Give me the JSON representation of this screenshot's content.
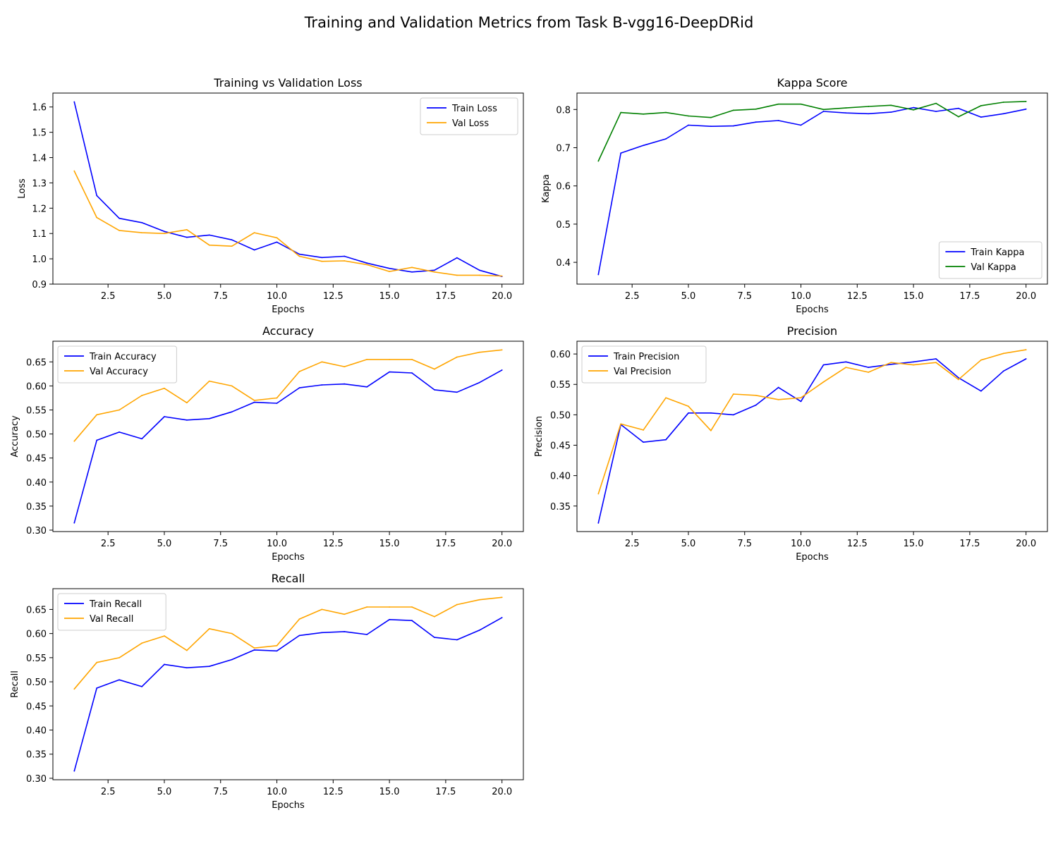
{
  "figure": {
    "suptitle": "Training and Validation Metrics from Task B-vgg16-DeepDRid"
  },
  "chart_data": [
    {
      "type": "line",
      "title": "Training vs Validation Loss",
      "xlabel": "Epochs",
      "ylabel": "Loss",
      "x": [
        1,
        2,
        3,
        4,
        5,
        6,
        7,
        8,
        9,
        10,
        11,
        12,
        13,
        14,
        15,
        16,
        17,
        18,
        19,
        20
      ],
      "xlim": [
        0.05,
        20.95
      ],
      "ylim": [
        0.9,
        1.655
      ],
      "xticks": [
        2.5,
        5.0,
        7.5,
        10.0,
        12.5,
        15.0,
        17.5,
        20.0
      ],
      "yticks": [
        0.9,
        1.0,
        1.1,
        1.2,
        1.3,
        1.4,
        1.5,
        1.6
      ],
      "ytick_decimals": 1,
      "legend": "upper right",
      "series": [
        {
          "name": "Train Loss",
          "color": "#0000ff",
          "values": [
            1.62,
            1.25,
            1.16,
            1.143,
            1.108,
            1.085,
            1.094,
            1.075,
            1.035,
            1.066,
            1.018,
            1.005,
            1.01,
            0.983,
            0.962,
            0.948,
            0.955,
            1.004,
            0.955,
            0.93
          ]
        },
        {
          "name": "Val Loss",
          "color": "#ffa500",
          "values": [
            1.347,
            1.163,
            1.112,
            1.103,
            1.1,
            1.115,
            1.054,
            1.05,
            1.103,
            1.083,
            1.01,
            0.99,
            0.992,
            0.977,
            0.95,
            0.966,
            0.948,
            0.935,
            0.935,
            0.932
          ]
        }
      ]
    },
    {
      "type": "line",
      "title": "Kappa Score",
      "xlabel": "Epochs",
      "ylabel": "Kappa",
      "x": [
        1,
        2,
        3,
        4,
        5,
        6,
        7,
        8,
        9,
        10,
        11,
        12,
        13,
        14,
        15,
        16,
        17,
        18,
        19,
        20
      ],
      "xlim": [
        0.05,
        20.95
      ],
      "ylim": [
        0.343,
        0.843
      ],
      "xticks": [
        2.5,
        5.0,
        7.5,
        10.0,
        12.5,
        15.0,
        17.5,
        20.0
      ],
      "yticks": [
        0.4,
        0.5,
        0.6,
        0.7,
        0.8
      ],
      "ytick_decimals": 1,
      "legend": "lower right",
      "series": [
        {
          "name": "Train Kappa",
          "color": "#0000ff",
          "values": [
            0.368,
            0.686,
            0.706,
            0.723,
            0.759,
            0.756,
            0.757,
            0.767,
            0.771,
            0.759,
            0.795,
            0.791,
            0.789,
            0.793,
            0.805,
            0.795,
            0.803,
            0.78,
            0.789,
            0.801
          ]
        },
        {
          "name": "Val Kappa",
          "color": "#008000",
          "values": [
            0.665,
            0.792,
            0.788,
            0.792,
            0.783,
            0.779,
            0.798,
            0.801,
            0.814,
            0.814,
            0.8,
            0.804,
            0.808,
            0.811,
            0.799,
            0.816,
            0.781,
            0.81,
            0.819,
            0.821
          ]
        }
      ]
    },
    {
      "type": "line",
      "title": "Accuracy",
      "xlabel": "Epochs",
      "ylabel": "Accuracy",
      "x": [
        1,
        2,
        3,
        4,
        5,
        6,
        7,
        8,
        9,
        10,
        11,
        12,
        13,
        14,
        15,
        16,
        17,
        18,
        19,
        20
      ],
      "xlim": [
        0.05,
        20.95
      ],
      "ylim": [
        0.297,
        0.693
      ],
      "xticks": [
        2.5,
        5.0,
        7.5,
        10.0,
        12.5,
        15.0,
        17.5,
        20.0
      ],
      "yticks": [
        0.3,
        0.35,
        0.4,
        0.45,
        0.5,
        0.55,
        0.6,
        0.65
      ],
      "ytick_decimals": 2,
      "legend": "upper left",
      "series": [
        {
          "name": "Train Accuracy",
          "color": "#0000ff",
          "values": [
            0.315,
            0.487,
            0.504,
            0.49,
            0.536,
            0.529,
            0.532,
            0.546,
            0.566,
            0.564,
            0.596,
            0.602,
            0.604,
            0.598,
            0.629,
            0.627,
            0.592,
            0.587,
            0.607,
            0.633
          ]
        },
        {
          "name": "Val Accuracy",
          "color": "#ffa500",
          "values": [
            0.485,
            0.54,
            0.55,
            0.58,
            0.595,
            0.565,
            0.61,
            0.6,
            0.57,
            0.575,
            0.63,
            0.65,
            0.64,
            0.655,
            0.655,
            0.655,
            0.635,
            0.66,
            0.67,
            0.675
          ]
        }
      ]
    },
    {
      "type": "line",
      "title": "Precision",
      "xlabel": "Epochs",
      "ylabel": "Precision",
      "x": [
        1,
        2,
        3,
        4,
        5,
        6,
        7,
        8,
        9,
        10,
        11,
        12,
        13,
        14,
        15,
        16,
        17,
        18,
        19,
        20
      ],
      "xlim": [
        0.05,
        20.95
      ],
      "ylim": [
        0.308,
        0.621
      ],
      "xticks": [
        2.5,
        5.0,
        7.5,
        10.0,
        12.5,
        15.0,
        17.5,
        20.0
      ],
      "yticks": [
        0.35,
        0.4,
        0.45,
        0.5,
        0.55,
        0.6
      ],
      "ytick_decimals": 2,
      "legend": "upper left",
      "series": [
        {
          "name": "Train Precision",
          "color": "#0000ff",
          "values": [
            0.322,
            0.484,
            0.455,
            0.459,
            0.503,
            0.503,
            0.5,
            0.516,
            0.545,
            0.522,
            0.582,
            0.587,
            0.578,
            0.583,
            0.587,
            0.592,
            0.561,
            0.539,
            0.572,
            0.592
          ]
        },
        {
          "name": "Val Precision",
          "color": "#ffa500",
          "values": [
            0.37,
            0.485,
            0.475,
            0.528,
            0.514,
            0.474,
            0.534,
            0.532,
            0.525,
            0.528,
            0.554,
            0.578,
            0.57,
            0.586,
            0.582,
            0.586,
            0.558,
            0.59,
            0.601,
            0.607
          ]
        }
      ]
    },
    {
      "type": "line",
      "title": "Recall",
      "xlabel": "Epochs",
      "ylabel": "Recall",
      "x": [
        1,
        2,
        3,
        4,
        5,
        6,
        7,
        8,
        9,
        10,
        11,
        12,
        13,
        14,
        15,
        16,
        17,
        18,
        19,
        20
      ],
      "xlim": [
        0.05,
        20.95
      ],
      "ylim": [
        0.297,
        0.693
      ],
      "xticks": [
        2.5,
        5.0,
        7.5,
        10.0,
        12.5,
        15.0,
        17.5,
        20.0
      ],
      "yticks": [
        0.3,
        0.35,
        0.4,
        0.45,
        0.5,
        0.55,
        0.6,
        0.65
      ],
      "ytick_decimals": 2,
      "legend": "upper left",
      "series": [
        {
          "name": "Train Recall",
          "color": "#0000ff",
          "values": [
            0.315,
            0.487,
            0.504,
            0.49,
            0.536,
            0.529,
            0.532,
            0.546,
            0.566,
            0.564,
            0.596,
            0.602,
            0.604,
            0.598,
            0.629,
            0.627,
            0.592,
            0.587,
            0.607,
            0.633
          ]
        },
        {
          "name": "Val Recall",
          "color": "#ffa500",
          "values": [
            0.485,
            0.54,
            0.55,
            0.58,
            0.595,
            0.565,
            0.61,
            0.6,
            0.57,
            0.575,
            0.63,
            0.65,
            0.64,
            0.655,
            0.655,
            0.655,
            0.635,
            0.66,
            0.67,
            0.675
          ]
        }
      ]
    }
  ]
}
